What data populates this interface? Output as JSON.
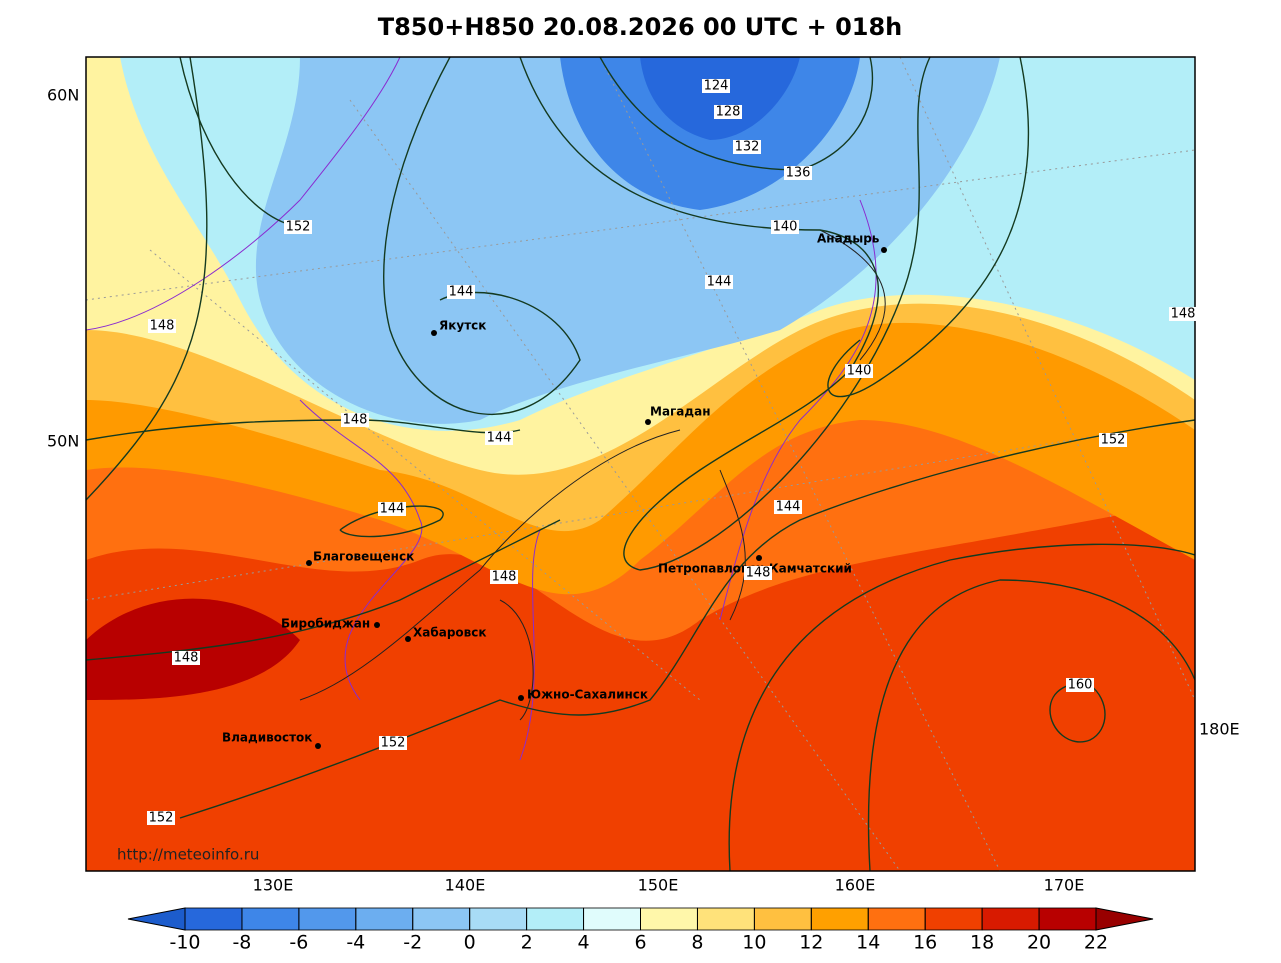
{
  "title": "T850+H850 20.08.2026 00 UTC + 018h",
  "lat_labels": [
    "60N",
    "50N"
  ],
  "lon_labels": [
    "130E",
    "140E",
    "150E",
    "160E",
    "170E",
    "180E"
  ],
  "cities": [
    "Якутск",
    "Магадан",
    "Анадырь",
    "Петропавловск-Камчатский",
    "Благовещенск",
    "Биробиджан",
    "Хабаровск",
    "Южно-Сахалинск",
    "Владивосток"
  ],
  "contour_labels": [
    124,
    128,
    132,
    136,
    140,
    144,
    144,
    152,
    148,
    148,
    140,
    152,
    148,
    144,
    144,
    144,
    148,
    148,
    148,
    152,
    160,
    152
  ],
  "colorbar": {
    "ticks": [
      -10,
      -8,
      -6,
      -4,
      -2,
      0,
      2,
      4,
      6,
      8,
      10,
      12,
      14,
      16,
      18,
      20,
      22
    ],
    "colors": [
      "#1c5ccc",
      "#2668dc",
      "#3e86e8",
      "#5298ec",
      "#6caef0",
      "#8cc6f4",
      "#a8dcf6",
      "#b3eef8",
      "#e0fcfc",
      "#fff7aa",
      "#ffe27a",
      "#ffc040",
      "#ffa000",
      "#ff7010",
      "#f04000",
      "#d81a00",
      "#b80000",
      "#980000"
    ]
  },
  "credit": "http://meteoinfo.ru"
}
